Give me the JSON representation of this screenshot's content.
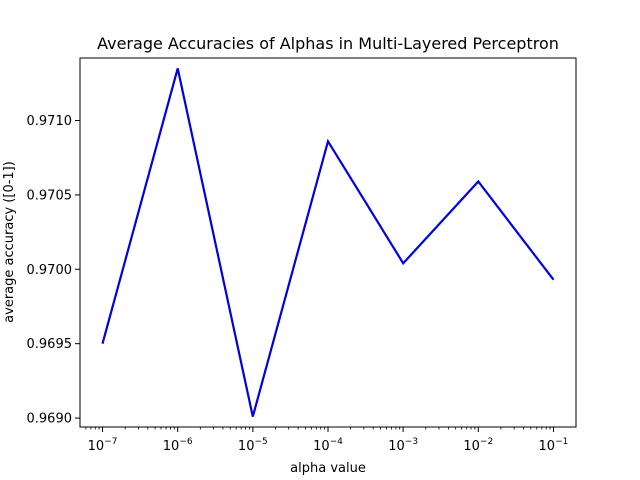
{
  "chart_data": {
    "type": "line",
    "title": "Average Accuracies of Alphas in Multi-Layered Perceptron",
    "xlabel": "alpha value",
    "ylabel": "average accuracy ([0-1])",
    "x_scale": "log",
    "x": [
      1e-07,
      1e-06,
      1e-05,
      0.0001,
      0.001,
      0.01,
      0.1
    ],
    "xticks": [
      {
        "base": "10",
        "exp": "−7"
      },
      {
        "base": "10",
        "exp": "−6"
      },
      {
        "base": "10",
        "exp": "−5"
      },
      {
        "base": "10",
        "exp": "−4"
      },
      {
        "base": "10",
        "exp": "−3"
      },
      {
        "base": "10",
        "exp": "−2"
      },
      {
        "base": "10",
        "exp": "−1"
      }
    ],
    "yticks": [
      "0.9690",
      "0.9695",
      "0.9700",
      "0.9705",
      "0.9710"
    ],
    "ytick_values": [
      0.969,
      0.9695,
      0.97,
      0.9705,
      0.971
    ],
    "ylim": [
      0.96894,
      0.97142
    ],
    "series": [
      {
        "values": [
          0.9695,
          0.97135,
          0.96901,
          0.97086,
          0.97004,
          0.97059,
          0.96993
        ],
        "color": "#0000e0"
      }
    ],
    "grid": false,
    "legend": "none"
  }
}
